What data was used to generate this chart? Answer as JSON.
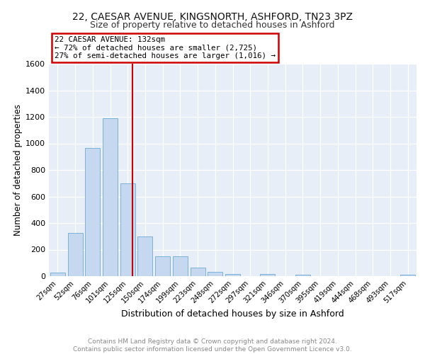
{
  "title1": "22, CAESAR AVENUE, KINGSNORTH, ASHFORD, TN23 3PZ",
  "title2": "Size of property relative to detached houses in Ashford",
  "xlabel": "Distribution of detached houses by size in Ashford",
  "ylabel": "Number of detached properties",
  "categories": [
    "27sqm",
    "52sqm",
    "76sqm",
    "101sqm",
    "125sqm",
    "150sqm",
    "174sqm",
    "199sqm",
    "223sqm",
    "248sqm",
    "272sqm",
    "297sqm",
    "321sqm",
    "346sqm",
    "370sqm",
    "395sqm",
    "419sqm",
    "444sqm",
    "468sqm",
    "493sqm",
    "517sqm"
  ],
  "values": [
    25,
    325,
    965,
    1190,
    700,
    300,
    150,
    150,
    65,
    30,
    15,
    0,
    15,
    0,
    10,
    0,
    0,
    0,
    0,
    0,
    10
  ],
  "bar_color": "#c5d8f0",
  "bar_edge_color": "#6aaad4",
  "vline_color": "#cc0000",
  "annotation_line1": "22 CAESAR AVENUE: 132sqm",
  "annotation_line2": "← 72% of detached houses are smaller (2,725)",
  "annotation_line3": "27% of semi-detached houses are larger (1,016) →",
  "annotation_box_color": "#cc0000",
  "ylim": [
    0,
    1600
  ],
  "yticks": [
    0,
    200,
    400,
    600,
    800,
    1000,
    1200,
    1400,
    1600
  ],
  "background_color": "#e8eef8",
  "footer_text": "Contains HM Land Registry data © Crown copyright and database right 2024.\nContains public sector information licensed under the Open Government Licence v3.0.",
  "title1_fontsize": 10,
  "title2_fontsize": 9,
  "xlabel_fontsize": 9,
  "ylabel_fontsize": 8.5,
  "footer_fontsize": 6.5
}
